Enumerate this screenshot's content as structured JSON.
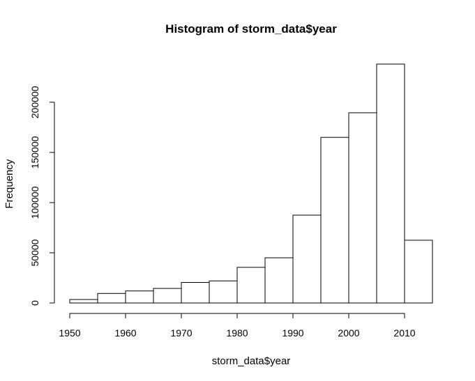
{
  "chart_data": {
    "type": "bar",
    "title": "Histogram of storm_data$year",
    "xlabel": "storm_data$year",
    "ylabel": "Frequency",
    "bins": [
      {
        "start": 1950,
        "end": 1955,
        "count": 3500
      },
      {
        "start": 1955,
        "end": 1960,
        "count": 9500
      },
      {
        "start": 1960,
        "end": 1965,
        "count": 12000
      },
      {
        "start": 1965,
        "end": 1970,
        "count": 14500
      },
      {
        "start": 1970,
        "end": 1975,
        "count": 20500
      },
      {
        "start": 1975,
        "end": 1980,
        "count": 22000
      },
      {
        "start": 1980,
        "end": 1985,
        "count": 35500
      },
      {
        "start": 1985,
        "end": 1990,
        "count": 45000
      },
      {
        "start": 1990,
        "end": 1995,
        "count": 87500
      },
      {
        "start": 1995,
        "end": 2000,
        "count": 165000
      },
      {
        "start": 2000,
        "end": 2005,
        "count": 189500
      },
      {
        "start": 2005,
        "end": 2010,
        "count": 238000
      },
      {
        "start": 2010,
        "end": 2015,
        "count": 62500
      }
    ],
    "x_ticks": [
      1950,
      1960,
      1970,
      1980,
      1990,
      2000,
      2010
    ],
    "y_ticks": [
      0,
      50000,
      100000,
      150000,
      200000
    ],
    "xlim": [
      1950,
      2015
    ],
    "ylim": [
      0,
      238000
    ],
    "grid": false,
    "bar_fill": "#ffffff",
    "bar_stroke": "#000000"
  }
}
